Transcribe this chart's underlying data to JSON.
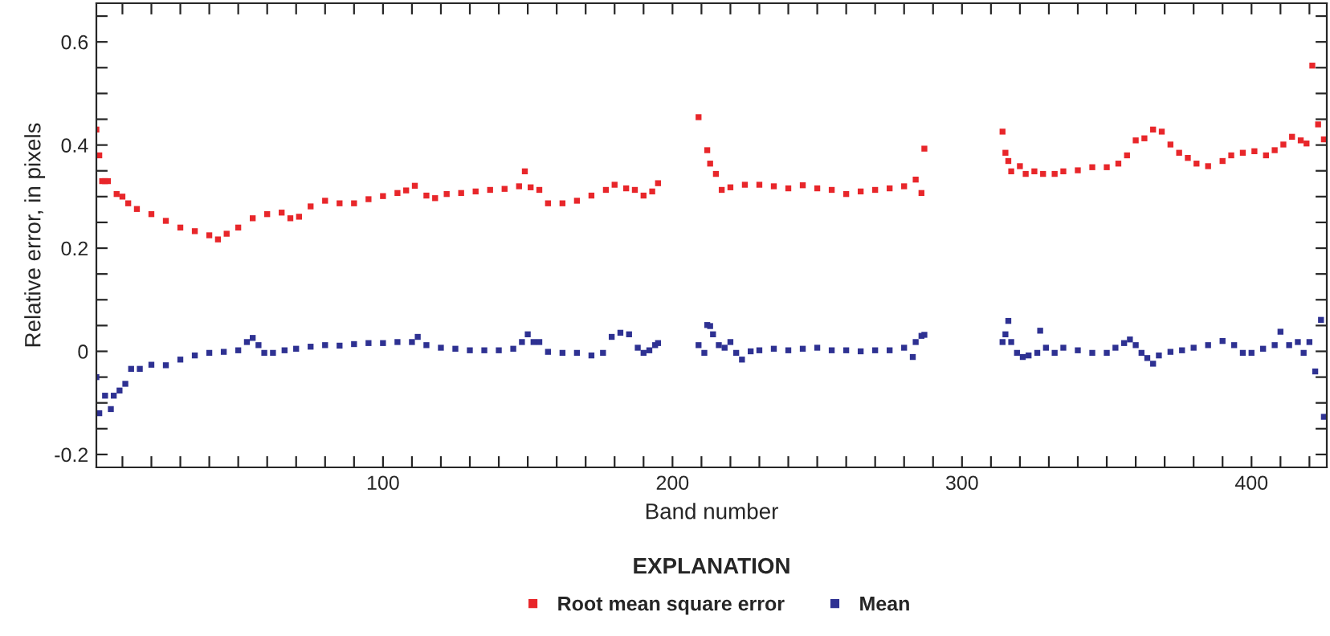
{
  "chart_data": {
    "type": "scatter",
    "xlabel": "Band number",
    "ylabel": "Relative error, in pixels",
    "legend_title": "EXPLANATION",
    "legend": "bottom",
    "marker": "square",
    "grid": false,
    "xlim": [
      1,
      426
    ],
    "ylim": [
      -0.225,
      0.675
    ],
    "xticks": [
      {
        "value": 10,
        "label": null
      },
      {
        "value": 20,
        "label": null
      },
      {
        "value": 30,
        "label": null
      },
      {
        "value": 40,
        "label": null
      },
      {
        "value": 50,
        "label": null
      },
      {
        "value": 60,
        "label": null
      },
      {
        "value": 70,
        "label": null
      },
      {
        "value": 80,
        "label": null
      },
      {
        "value": 90,
        "label": null
      },
      100,
      {
        "value": 110,
        "label": null
      },
      {
        "value": 120,
        "label": null
      },
      {
        "value": 130,
        "label": null
      },
      {
        "value": 140,
        "label": null
      },
      {
        "value": 150,
        "label": null
      },
      {
        "value": 160,
        "label": null
      },
      {
        "value": 170,
        "label": null
      },
      {
        "value": 180,
        "label": null
      },
      {
        "value": 190,
        "label": null
      },
      200,
      {
        "value": 210,
        "label": null
      },
      {
        "value": 220,
        "label": null
      },
      {
        "value": 230,
        "label": null
      },
      {
        "value": 240,
        "label": null
      },
      {
        "value": 250,
        "label": null
      },
      {
        "value": 260,
        "label": null
      },
      {
        "value": 270,
        "label": null
      },
      {
        "value": 280,
        "label": null
      },
      {
        "value": 290,
        "label": null
      },
      300,
      {
        "value": 310,
        "label": null
      },
      {
        "value": 320,
        "label": null
      },
      {
        "value": 330,
        "label": null
      },
      {
        "value": 340,
        "label": null
      },
      {
        "value": 350,
        "label": null
      },
      {
        "value": 360,
        "label": null
      },
      {
        "value": 370,
        "label": null
      },
      {
        "value": 380,
        "label": null
      },
      {
        "value": 390,
        "label": null
      },
      400,
      {
        "value": 410,
        "label": null
      },
      {
        "value": 420,
        "label": null
      }
    ],
    "yticks": [
      -0.2,
      {
        "value": -0.15,
        "label": null
      },
      {
        "value": -0.1,
        "label": null
      },
      {
        "value": -0.05,
        "label": null
      },
      0,
      {
        "value": 0.05,
        "label": null
      },
      {
        "value": 0.1,
        "label": null
      },
      {
        "value": 0.15,
        "label": null
      },
      0.2,
      {
        "value": 0.25,
        "label": null
      },
      {
        "value": 0.3,
        "label": null
      },
      {
        "value": 0.35,
        "label": null
      },
      0.4,
      {
        "value": 0.45,
        "label": null
      },
      {
        "value": 0.5,
        "label": null
      },
      {
        "value": 0.55,
        "label": null
      },
      0.6,
      {
        "value": 0.65,
        "label": null
      }
    ],
    "series": [
      {
        "name": "Root mean square error",
        "color": "#e8262a",
        "x": [
          1,
          2,
          3,
          4,
          5,
          8,
          10,
          12,
          15,
          20,
          25,
          30,
          35,
          40,
          43,
          46,
          50,
          55,
          60,
          65,
          68,
          71,
          75,
          80,
          85,
          90,
          95,
          100,
          105,
          108,
          111,
          115,
          118,
          122,
          127,
          132,
          137,
          142,
          147,
          149,
          151,
          154,
          157,
          162,
          167,
          172,
          177,
          180,
          184,
          187,
          190,
          193,
          195,
          209,
          212,
          213,
          215,
          217,
          220,
          225,
          230,
          235,
          240,
          245,
          250,
          255,
          260,
          265,
          270,
          275,
          280,
          284,
          286,
          287,
          314,
          315,
          316,
          317,
          320,
          322,
          325,
          328,
          332,
          335,
          340,
          345,
          350,
          354,
          357,
          360,
          363,
          366,
          369,
          372,
          375,
          378,
          381,
          385,
          390,
          393,
          397,
          401,
          405,
          408,
          411,
          414,
          417,
          419,
          421,
          423,
          425
        ],
        "values": [
          0.43,
          0.38,
          0.33,
          0.33,
          0.33,
          0.305,
          0.3,
          0.287,
          0.276,
          0.266,
          0.253,
          0.24,
          0.233,
          0.225,
          0.217,
          0.228,
          0.24,
          0.258,
          0.266,
          0.269,
          0.258,
          0.261,
          0.281,
          0.292,
          0.287,
          0.287,
          0.295,
          0.301,
          0.307,
          0.312,
          0.321,
          0.302,
          0.297,
          0.305,
          0.307,
          0.31,
          0.313,
          0.315,
          0.32,
          0.349,
          0.318,
          0.313,
          0.287,
          0.287,
          0.292,
          0.302,
          0.313,
          0.323,
          0.316,
          0.313,
          0.302,
          0.31,
          0.326,
          0.454,
          0.39,
          0.364,
          0.344,
          0.313,
          0.318,
          0.323,
          0.323,
          0.32,
          0.316,
          0.322,
          0.316,
          0.313,
          0.305,
          0.31,
          0.313,
          0.316,
          0.32,
          0.333,
          0.307,
          0.393,
          0.426,
          0.385,
          0.369,
          0.349,
          0.359,
          0.344,
          0.349,
          0.344,
          0.344,
          0.349,
          0.351,
          0.357,
          0.357,
          0.364,
          0.38,
          0.409,
          0.413,
          0.43,
          0.426,
          0.401,
          0.385,
          0.375,
          0.364,
          0.359,
          0.369,
          0.38,
          0.385,
          0.388,
          0.38,
          0.39,
          0.401,
          0.416,
          0.409,
          0.403,
          0.554,
          0.44,
          0.411
        ]
      },
      {
        "name": "Mean",
        "color": "#2e3192",
        "x": [
          1,
          2,
          4,
          6,
          7,
          9,
          11,
          13,
          16,
          20,
          25,
          30,
          35,
          40,
          45,
          50,
          53,
          55,
          57,
          59,
          62,
          66,
          70,
          75,
          80,
          85,
          90,
          95,
          100,
          105,
          110,
          112,
          115,
          120,
          125,
          130,
          135,
          140,
          145,
          148,
          150,
          152,
          154,
          157,
          162,
          167,
          172,
          176,
          179,
          182,
          185,
          188,
          190,
          192,
          194,
          195,
          209,
          211,
          212,
          213,
          214,
          216,
          218,
          220,
          222,
          224,
          227,
          230,
          235,
          240,
          245,
          250,
          255,
          260,
          265,
          270,
          275,
          280,
          283,
          284,
          286,
          287,
          314,
          315,
          316,
          317,
          319,
          321,
          323,
          326,
          327,
          329,
          332,
          335,
          340,
          345,
          350,
          353,
          356,
          358,
          360,
          362,
          364,
          366,
          368,
          372,
          376,
          380,
          385,
          390,
          394,
          397,
          400,
          404,
          408,
          410,
          413,
          416,
          418,
          420,
          422,
          424,
          425
        ],
        "values": [
          -0.05,
          -0.12,
          -0.086,
          -0.112,
          -0.086,
          -0.076,
          -0.063,
          -0.034,
          -0.034,
          -0.026,
          -0.027,
          -0.016,
          -0.008,
          -0.003,
          -0.001,
          0.002,
          0.018,
          0.026,
          0.012,
          -0.003,
          -0.003,
          0.002,
          0.005,
          0.009,
          0.012,
          0.011,
          0.014,
          0.016,
          0.016,
          0.018,
          0.018,
          0.028,
          0.012,
          0.007,
          0.005,
          0.002,
          0.002,
          0.002,
          0.005,
          0.018,
          0.033,
          0.018,
          0.018,
          -0.001,
          -0.003,
          -0.003,
          -0.008,
          -0.003,
          0.028,
          0.036,
          0.033,
          0.007,
          -0.003,
          0.002,
          0.012,
          0.016,
          0.012,
          -0.003,
          0.051,
          0.049,
          0.033,
          0.012,
          0.007,
          0.018,
          -0.003,
          -0.016,
          0,
          0.002,
          0.005,
          0.002,
          0.005,
          0.007,
          0.002,
          0.002,
          0,
          0.002,
          0.002,
          0.007,
          -0.011,
          0.018,
          0.03,
          0.032,
          0.018,
          0.033,
          0.059,
          0.018,
          -0.003,
          -0.011,
          -0.008,
          -0.003,
          0.04,
          0.007,
          -0.003,
          0.007,
          0.002,
          -0.003,
          -0.003,
          0.007,
          0.016,
          0.023,
          0.012,
          -0.003,
          -0.013,
          -0.024,
          -0.008,
          -0.001,
          0.002,
          0.007,
          0.012,
          0.02,
          0.012,
          -0.003,
          -0.003,
          0.005,
          0.012,
          0.038,
          0.012,
          0.018,
          -0.003,
          0.018,
          -0.039,
          0.061,
          -0.127
        ]
      }
    ]
  }
}
